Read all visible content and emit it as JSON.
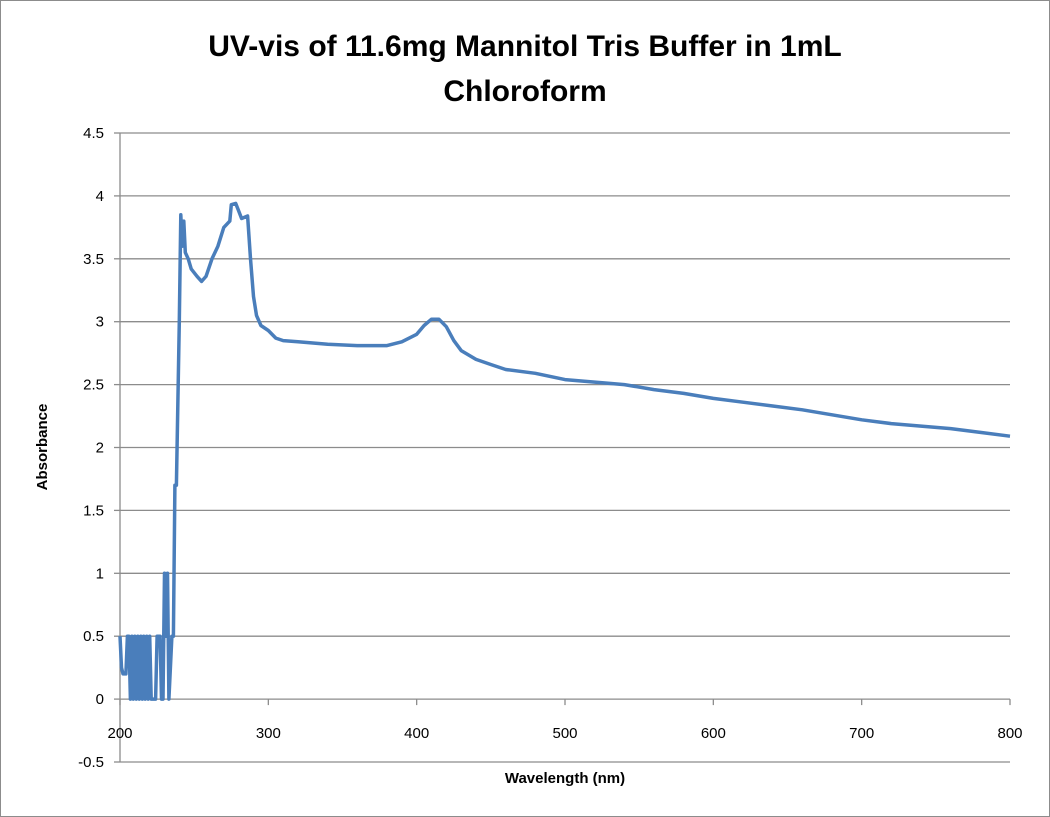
{
  "chart_data": {
    "type": "line",
    "title_lines": [
      "UV-vis of 11.6mg Mannitol Tris Buffer in 1mL",
      "Chloroform"
    ],
    "xlabel": "Wavelength (nm)",
    "ylabel": "Absorbance",
    "xlim": [
      200,
      800
    ],
    "ylim": [
      -0.5,
      4.5
    ],
    "xticks": [
      200,
      300,
      400,
      500,
      600,
      700,
      800
    ],
    "yticks": [
      -0.5,
      0,
      0.5,
      1,
      1.5,
      2,
      2.5,
      3,
      3.5,
      4,
      4.5
    ],
    "ytick_labels": [
      "-0.5",
      "0",
      "0.5",
      "1",
      "1.5",
      "2",
      "2.5",
      "3",
      "3.5",
      "4",
      "4.5"
    ],
    "grid": "horizontal",
    "legend": "none",
    "line_color": "#4a7ebb",
    "series": [
      {
        "name": "Absorbance",
        "x": [
          200,
          201,
          202,
          204,
          205,
          206,
          207,
          208,
          209,
          210,
          211,
          212,
          213,
          214,
          215,
          216,
          217,
          218,
          219,
          220,
          221,
          224,
          225,
          227,
          228,
          229,
          230,
          231,
          232,
          233,
          235,
          236,
          237,
          238,
          240,
          241,
          242,
          243,
          244,
          246,
          248,
          252,
          255,
          258,
          262,
          266,
          270,
          274,
          275,
          278,
          280,
          282,
          286,
          288,
          290,
          292,
          295,
          300,
          305,
          310,
          320,
          340,
          360,
          380,
          390,
          400,
          405,
          410,
          415,
          420,
          425,
          430,
          440,
          450,
          460,
          480,
          500,
          520,
          540,
          560,
          580,
          600,
          620,
          640,
          660,
          680,
          700,
          720,
          740,
          760,
          780,
          800
        ],
        "y": [
          0.5,
          0.25,
          0.2,
          0.2,
          0.5,
          0.5,
          0,
          0.5,
          0,
          0.5,
          0,
          0.5,
          0,
          0.5,
          0,
          0.5,
          0,
          0.5,
          0,
          0.5,
          0,
          0,
          0.5,
          0.5,
          0,
          0,
          1.0,
          0.5,
          1.0,
          0,
          0.5,
          0.5,
          1.7,
          1.7,
          3.0,
          3.85,
          3.6,
          3.8,
          3.55,
          3.5,
          3.42,
          3.36,
          3.32,
          3.36,
          3.5,
          3.6,
          3.75,
          3.8,
          3.93,
          3.94,
          3.88,
          3.82,
          3.84,
          3.5,
          3.2,
          3.05,
          2.97,
          2.93,
          2.87,
          2.85,
          2.84,
          2.82,
          2.81,
          2.81,
          2.84,
          2.9,
          2.97,
          3.02,
          3.02,
          2.96,
          2.85,
          2.77,
          2.7,
          2.66,
          2.62,
          2.59,
          2.54,
          2.52,
          2.5,
          2.46,
          2.43,
          2.39,
          2.36,
          2.33,
          2.3,
          2.26,
          2.22,
          2.19,
          2.17,
          2.15,
          2.12,
          2.09
        ]
      }
    ]
  }
}
